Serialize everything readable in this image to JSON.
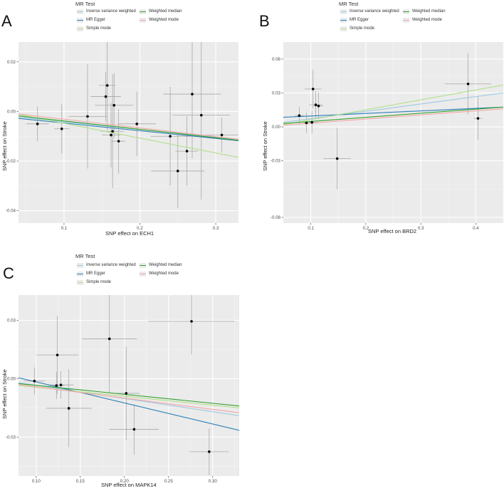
{
  "legend": {
    "title": "MR Test",
    "items": [
      {
        "name": "Inverse variance weighted",
        "color": "#9ecae1"
      },
      {
        "name": "MR Egger",
        "color": "#2c7fb8"
      },
      {
        "name": "Simple mode",
        "color": "#b2df8a"
      },
      {
        "name": "Weighted median",
        "color": "#33a02c"
      },
      {
        "name": "Weighted mode",
        "color": "#f4a6a6"
      }
    ]
  },
  "chart_data": [
    {
      "panel": "A",
      "type": "scatter",
      "xlabel": "SNP effect on ECH1",
      "ylabel": "SNP effect on Stroke",
      "xlim": [
        0.04,
        0.33
      ],
      "ylim": [
        -0.045,
        0.028
      ],
      "xticks": [
        0.1,
        0.2,
        0.3
      ],
      "yticks": [
        -0.04,
        -0.02,
        0.0,
        0.02
      ],
      "xtick_labels": [
        "0.1",
        "0.2",
        "0.3"
      ],
      "ytick_labels": [
        "-0.04",
        "-0.02",
        "0.00",
        "0.02"
      ],
      "points": [
        {
          "x": 0.065,
          "y": -0.005,
          "xerr": 0.015,
          "yerr": 0.007
        },
        {
          "x": 0.097,
          "y": -0.007,
          "xerr": 0.01,
          "yerr": 0.01
        },
        {
          "x": 0.131,
          "y": -0.002,
          "xerr": 0.025,
          "yerr": 0.021
        },
        {
          "x": 0.155,
          "y": 0.006,
          "xerr": 0.02,
          "yerr": 0.01
        },
        {
          "x": 0.157,
          "y": 0.0105,
          "xerr": 0.011,
          "yerr": 0.018
        },
        {
          "x": 0.162,
          "y": -0.0095,
          "xerr": 0.012,
          "yerr": 0.013
        },
        {
          "x": 0.164,
          "y": -0.008,
          "xerr": 0.015,
          "yerr": 0.023
        },
        {
          "x": 0.166,
          "y": 0.0025,
          "xerr": 0.025,
          "yerr": 0.013
        },
        {
          "x": 0.172,
          "y": -0.012,
          "xerr": 0.009,
          "yerr": 0.013
        },
        {
          "x": 0.196,
          "y": -0.005,
          "xerr": 0.025,
          "yerr": 0.013
        },
        {
          "x": 0.24,
          "y": -0.01,
          "xerr": 0.026,
          "yerr": 0.02
        },
        {
          "x": 0.25,
          "y": -0.024,
          "xerr": 0.035,
          "yerr": 0.015
        },
        {
          "x": 0.262,
          "y": -0.016,
          "xerr": 0.015,
          "yerr": 0.014
        },
        {
          "x": 0.269,
          "y": 0.007,
          "xerr": 0.038,
          "yerr": 0.026
        },
        {
          "x": 0.281,
          "y": -0.0015,
          "xerr": 0.038,
          "yerr": 0.034
        },
        {
          "x": 0.308,
          "y": -0.0095,
          "xerr": 0.022,
          "yerr": 0.007
        }
      ],
      "lines": [
        {
          "name": "Inverse variance weighted",
          "x": [
            0.04,
            0.33
          ],
          "y": [
            -0.0023,
            -0.0112
          ]
        },
        {
          "name": "MR Egger",
          "x": [
            0.04,
            0.33
          ],
          "y": [
            -0.0028,
            -0.0118
          ]
        },
        {
          "name": "Simple mode",
          "x": [
            0.04,
            0.33
          ],
          "y": [
            -0.0012,
            -0.0185
          ]
        },
        {
          "name": "Weighted median",
          "x": [
            0.04,
            0.33
          ],
          "y": [
            -0.0018,
            -0.0116
          ]
        },
        {
          "name": "Weighted mode",
          "x": [
            0.04,
            0.33
          ],
          "y": [
            -0.001,
            -0.0112
          ]
        }
      ]
    },
    {
      "panel": "B",
      "type": "scatter",
      "xlabel": "SNP effect on BRD2",
      "ylabel": "SNP effect on Stroke",
      "xlim": [
        0.05,
        0.45
      ],
      "ylim": [
        -0.085,
        0.075
      ],
      "xticks": [
        0.1,
        0.2,
        0.3,
        0.4
      ],
      "yticks": [
        -0.08,
        -0.03,
        0.0,
        0.03,
        0.06
      ],
      "xtick_labels": [
        "0.1",
        "0.2",
        "0.3",
        "0.4"
      ],
      "ytick_labels": [
        "-0.08",
        "-0.03",
        "0.00",
        "0.03",
        "0.06"
      ],
      "points": [
        {
          "x": 0.079,
          "y": 0.01,
          "xerr": 0.008,
          "yerr": 0.008
        },
        {
          "x": 0.092,
          "y": 0.0035,
          "xerr": 0.005,
          "yerr": 0.009
        },
        {
          "x": 0.102,
          "y": 0.004,
          "xerr": 0.012,
          "yerr": 0.01
        },
        {
          "x": 0.104,
          "y": 0.0335,
          "xerr": 0.015,
          "yerr": 0.017
        },
        {
          "x": 0.109,
          "y": 0.0195,
          "xerr": 0.012,
          "yerr": 0.012
        },
        {
          "x": 0.114,
          "y": 0.0185,
          "xerr": 0.008,
          "yerr": 0.012
        },
        {
          "x": 0.148,
          "y": -0.028,
          "xerr": 0.025,
          "yerr": 0.027
        },
        {
          "x": 0.386,
          "y": 0.038,
          "xerr": 0.042,
          "yerr": 0.027
        },
        {
          "x": 0.404,
          "y": 0.0075,
          "xerr": 0.008,
          "yerr": 0.019
        }
      ],
      "lines": [
        {
          "name": "Inverse variance weighted",
          "x": [
            0.05,
            0.45
          ],
          "y": [
            0.004,
            0.03
          ]
        },
        {
          "name": "MR Egger",
          "x": [
            0.05,
            0.45
          ],
          "y": [
            0.0085,
            0.0175
          ]
        },
        {
          "name": "Simple mode",
          "x": [
            0.05,
            0.45
          ],
          "y": [
            0.002,
            0.037
          ]
        },
        {
          "name": "Weighted median",
          "x": [
            0.05,
            0.45
          ],
          "y": [
            0.003,
            0.0175
          ]
        },
        {
          "name": "Weighted mode",
          "x": [
            0.05,
            0.45
          ],
          "y": [
            0.0015,
            0.016
          ]
        }
      ]
    },
    {
      "panel": "C",
      "type": "scatter",
      "xlabel": "SNP effect on MAPK14",
      "ylabel": "SNP effect on Stroke",
      "xlim": [
        0.08,
        0.33
      ],
      "ylim": [
        -0.05,
        0.043
      ],
      "xticks": [
        0.1,
        0.15,
        0.2,
        0.25,
        0.3
      ],
      "yticks": [
        -0.03,
        0.0,
        0.03
      ],
      "xtick_labels": [
        "0.10",
        "0.15",
        "0.20",
        "0.25",
        "0.30"
      ],
      "ytick_labels": [
        "-0.03",
        "0.00",
        "0.03"
      ],
      "points": [
        {
          "x": 0.098,
          "y": -0.0012,
          "xerr": 0.012,
          "yerr": 0.007
        },
        {
          "x": 0.123,
          "y": -0.0035,
          "xerr": 0.009,
          "yerr": 0.007
        },
        {
          "x": 0.124,
          "y": 0.0122,
          "xerr": 0.024,
          "yerr": 0.02
        },
        {
          "x": 0.128,
          "y": -0.0032,
          "xerr": 0.014,
          "yerr": 0.007
        },
        {
          "x": 0.137,
          "y": -0.0152,
          "xerr": 0.026,
          "yerr": 0.02
        },
        {
          "x": 0.183,
          "y": 0.0205,
          "xerr": 0.031,
          "yerr": 0.028
        },
        {
          "x": 0.202,
          "y": -0.0075,
          "xerr": 0.015,
          "yerr": 0.024
        },
        {
          "x": 0.211,
          "y": -0.026,
          "xerr": 0.028,
          "yerr": 0.013
        },
        {
          "x": 0.276,
          "y": 0.0295,
          "xerr": 0.049,
          "yerr": 0.017
        },
        {
          "x": 0.296,
          "y": -0.0375,
          "xerr": 0.022,
          "yerr": 0.012
        }
      ],
      "lines": [
        {
          "name": "Inverse variance weighted",
          "x": [
            0.08,
            0.33
          ],
          "y": [
            -0.002,
            -0.019
          ]
        },
        {
          "name": "MR Egger",
          "x": [
            0.08,
            0.33
          ],
          "y": [
            0.0005,
            -0.0265
          ]
        },
        {
          "name": "Simple mode",
          "x": [
            0.08,
            0.33
          ],
          "y": [
            -0.0035,
            -0.015
          ]
        },
        {
          "name": "Weighted median",
          "x": [
            0.08,
            0.33
          ],
          "y": [
            -0.0025,
            -0.014
          ]
        },
        {
          "name": "Weighted mode",
          "x": [
            0.08,
            0.33
          ],
          "y": [
            -0.003,
            -0.0175
          ]
        }
      ]
    }
  ]
}
